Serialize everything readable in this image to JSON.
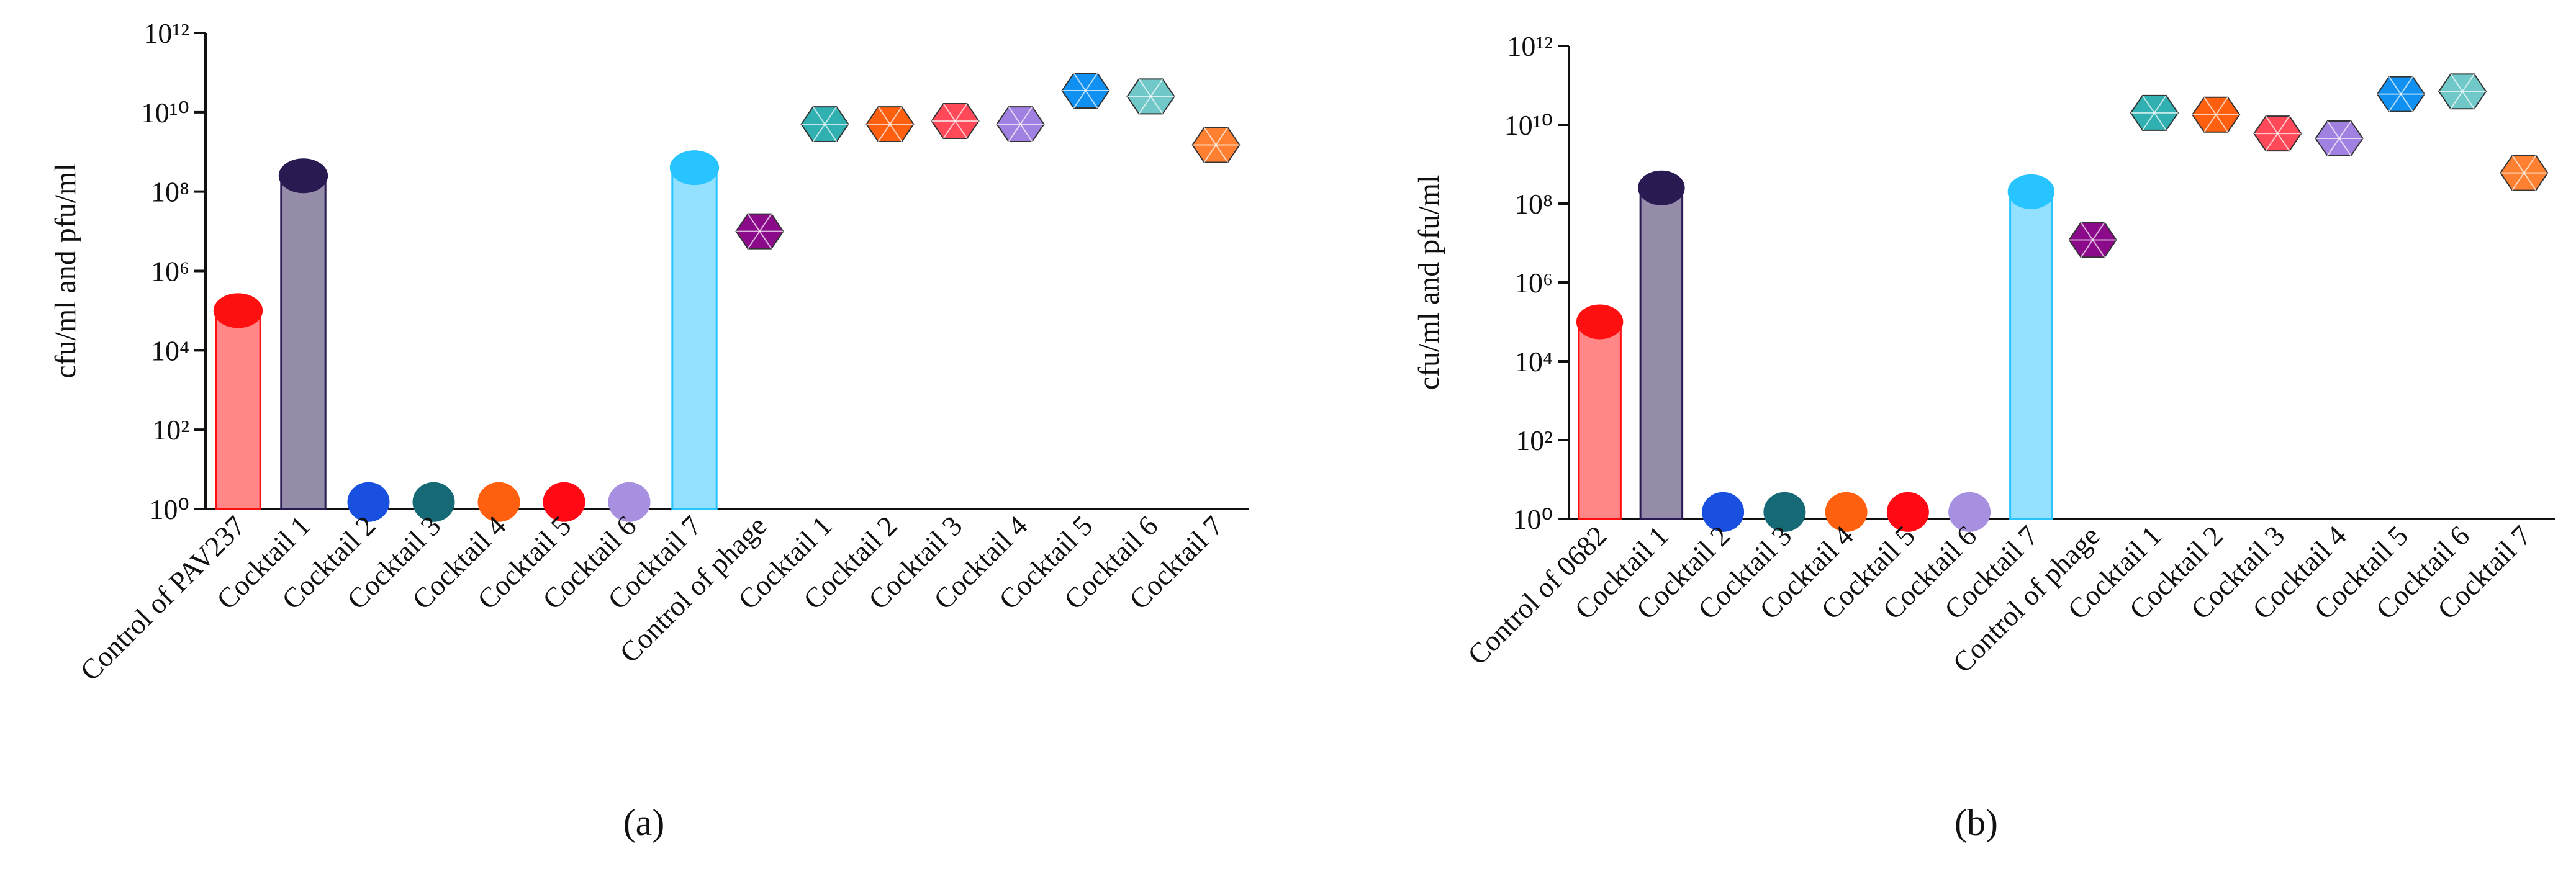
{
  "chart_data": [
    {
      "type": "bar",
      "ylabel": "cfu/ml and pfu/ml",
      "panel_label": "(a)",
      "log_scale": true,
      "categories": [
        "Control of PAV237",
        "Cocktail 1",
        "Cocktail 2",
        "Cocktail 3",
        "Cocktail 4",
        "Cocktail 5",
        "Cocktail 6",
        "Cocktail 7",
        "Control of phage",
        "Cocktail 1",
        "Cocktail 2",
        "Cocktail 3",
        "Cocktail 4",
        "Cocktail 5",
        "Cocktail 6",
        "Cocktail 7"
      ],
      "values": [
        100000,
        250000000,
        1.5,
        1.5,
        1.5,
        1.5,
        1.5,
        400000000,
        10000000,
        5000000000,
        5000000000,
        6000000000,
        5000000000,
        35000000000,
        25000000000,
        1500000000
      ],
      "markers": [
        "bar",
        "bar",
        "dot",
        "dot",
        "dot",
        "dot",
        "dot",
        "bar",
        "hexagon",
        "hexagon",
        "hexagon",
        "hexagon",
        "hexagon",
        "hexagon",
        "hexagon",
        "hexagon"
      ],
      "colors": [
        "#ff1010",
        "#2a1a52",
        "#1a50e0",
        "#166a76",
        "#ff6010",
        "#ff0a14",
        "#a890e0",
        "#28c4ff",
        "#8a0a8a",
        "#30b0b0",
        "#ff6010",
        "#ff4858",
        "#a080e0",
        "#1090f0",
        "#70c8c8",
        "#ff8030"
      ],
      "ylim": [
        1,
        1000000000000
      ],
      "yticks": [
        {
          "value": 1,
          "label": "10⁰"
        },
        {
          "value": 100,
          "label": "10²"
        },
        {
          "value": 10000,
          "label": "10⁴"
        },
        {
          "value": 1000000,
          "label": "10⁶"
        },
        {
          "value": 100000000,
          "label": "10⁸"
        },
        {
          "value": 10000000000,
          "label": "10¹⁰"
        },
        {
          "value": 1000000000000,
          "label": "10¹²"
        }
      ]
    },
    {
      "type": "bar",
      "ylabel": "cfu/ml and pfu/ml",
      "panel_label": "(b)",
      "log_scale": true,
      "categories": [
        "Control of 0682",
        "Cocktail 1",
        "Cocktail 2",
        "Cocktail 3",
        "Cocktail 4",
        "Cocktail 5",
        "Cocktail 6",
        "Cocktail 7",
        "Control of phage",
        "Cocktail 1",
        "Cocktail 2",
        "Cocktail 3",
        "Cocktail 4",
        "Cocktail 5",
        "Cocktail 6",
        "Cocktail 7"
      ],
      "values": [
        100000,
        250000000,
        1.5,
        1.5,
        1.5,
        1.5,
        1.5,
        200000000,
        12000000,
        20000000000,
        18000000000,
        6000000000,
        4500000000,
        60000000000,
        70000000000,
        600000000
      ],
      "markers": [
        "bar",
        "bar",
        "dot",
        "dot",
        "dot",
        "dot",
        "dot",
        "bar",
        "hexagon",
        "hexagon",
        "hexagon",
        "hexagon",
        "hexagon",
        "hexagon",
        "hexagon",
        "hexagon"
      ],
      "colors": [
        "#ff1010",
        "#2a1a52",
        "#1a50e0",
        "#166a76",
        "#ff6010",
        "#ff0a14",
        "#a890e0",
        "#28c4ff",
        "#8a0a8a",
        "#30b0b0",
        "#ff6010",
        "#ff4858",
        "#a080e0",
        "#1090f0",
        "#70c8c8",
        "#ff8030"
      ],
      "ylim": [
        1,
        1000000000000
      ],
      "yticks": [
        {
          "value": 1,
          "label": "10⁰"
        },
        {
          "value": 100,
          "label": "10²"
        },
        {
          "value": 10000,
          "label": "10⁴"
        },
        {
          "value": 1000000,
          "label": "10⁶"
        },
        {
          "value": 100000000,
          "label": "10⁸"
        },
        {
          "value": 10000000000,
          "label": "10¹⁰"
        },
        {
          "value": 1000000000000,
          "label": "10¹²"
        }
      ]
    }
  ]
}
